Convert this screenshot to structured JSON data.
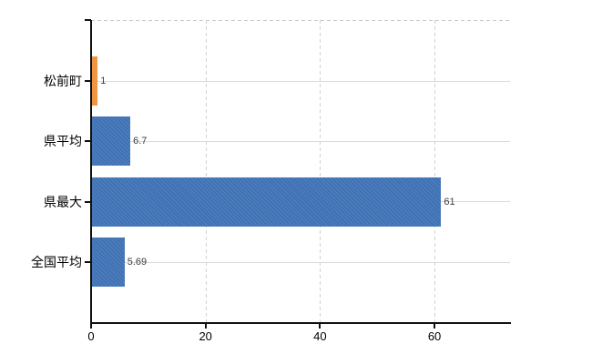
{
  "chart_data": {
    "type": "bar",
    "orientation": "horizontal",
    "title": "",
    "xlabel": "",
    "ylabel": "",
    "categories": [
      "松前町",
      "県平均",
      "県最大",
      "全国平均"
    ],
    "values": [
      1,
      6.7,
      61,
      5.69
    ],
    "value_labels": [
      "1",
      "6.7",
      "61",
      "5.69"
    ],
    "bar_colors": [
      "#ED9239",
      "#3F72B5",
      "#3F72B5",
      "#3F72B5"
    ],
    "x_ticks": [
      0,
      20,
      40,
      60
    ],
    "x_tick_labels": [
      "0",
      "20",
      "40",
      "60"
    ],
    "xlim": [
      0,
      73.2
    ],
    "grid": "on",
    "legend": "none",
    "colors": {
      "blue_bar": "#3F72B5",
      "orange_bar": "#ED9239",
      "axis": "#111111",
      "gridline": "#d8ddd8",
      "dashed_gridline": "#d2d2d6",
      "category_text": "#000000",
      "value_text": "#3d3d3d",
      "background": "#ffffff"
    }
  }
}
